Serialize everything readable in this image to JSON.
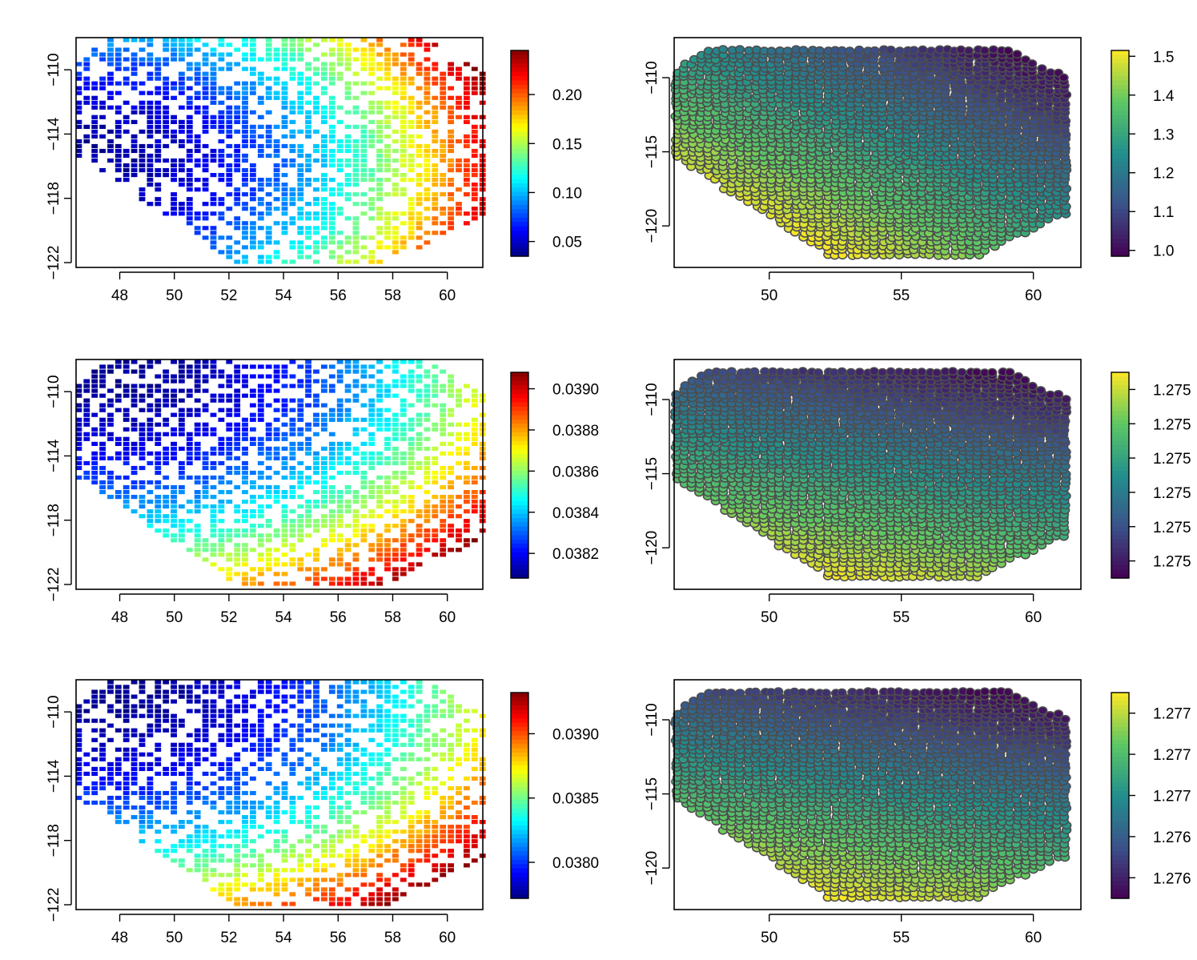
{
  "colors": {
    "jet": [
      "#00007f",
      "#0000ff",
      "#007fff",
      "#00ffff",
      "#7fff7f",
      "#ffff00",
      "#ff7f00",
      "#ff0000",
      "#7f0000"
    ],
    "viridis": [
      "#440154",
      "#3b528b",
      "#21908c",
      "#5dc863",
      "#fde725"
    ],
    "frame": "#000000",
    "point_outline": "#4d4d4d"
  },
  "chart_data": [
    {
      "id": "row1-left",
      "type": "heatmap",
      "grid": false,
      "xlim": [
        46.4,
        61.3
      ],
      "ylim": [
        -122.3,
        -108.0
      ],
      "x_ticks": [
        "48",
        "50",
        "52",
        "54",
        "56",
        "58",
        "60"
      ],
      "y_ticks": [
        "-110",
        "-114",
        "-118",
        "-122"
      ],
      "colorbar": {
        "colormap": "jet",
        "range": [
          0.035,
          0.245
        ],
        "ticks": [
          "0.05",
          "0.10",
          "0.15",
          "0.20"
        ]
      },
      "field": {
        "min": 0.035,
        "max": 0.245,
        "center": [
          53.5,
          -114.0
        ],
        "gradient": [
          0.55,
          0.15,
          0.3
        ]
      }
    },
    {
      "id": "row1-right",
      "type": "scatter",
      "grid": false,
      "xlim": [
        46.4,
        61.8
      ],
      "ylim": [
        -122.8,
        -107.3
      ],
      "x_ticks": [
        "50",
        "55",
        "60"
      ],
      "y_ticks": [
        "-110",
        "-115",
        "-120"
      ],
      "colorbar": {
        "colormap": "viridis",
        "range": [
          0.985,
          1.515
        ],
        "ticks": [
          "1.0",
          "1.1",
          "1.2",
          "1.3",
          "1.4",
          "1.5"
        ]
      },
      "field": {
        "min": 0.985,
        "max": 1.515,
        "center": [
          54.0,
          -115.0
        ],
        "gradient": [
          -0.45,
          -0.55,
          0.0
        ]
      }
    },
    {
      "id": "row2-left",
      "type": "heatmap",
      "grid": false,
      "xlim": [
        46.4,
        61.3
      ],
      "ylim": [
        -122.3,
        -108.0
      ],
      "x_ticks": [
        "48",
        "50",
        "52",
        "54",
        "56",
        "58",
        "60"
      ],
      "y_ticks": [
        "-110",
        "-114",
        "-118",
        "-122"
      ],
      "colorbar": {
        "colormap": "jet",
        "range": [
          0.03808,
          0.03908
        ],
        "ticks": [
          "0.0382",
          "0.0384",
          "0.0386",
          "0.0388",
          "0.0390"
        ]
      },
      "field": {
        "min": 0.03808,
        "max": 0.03908,
        "center": [
          53.5,
          -114.0
        ],
        "gradient": [
          0.45,
          -0.45,
          0.3
        ]
      }
    },
    {
      "id": "row2-right",
      "type": "scatter",
      "grid": false,
      "xlim": [
        46.4,
        61.8
      ],
      "ylim": [
        -122.8,
        -107.3
      ],
      "x_ticks": [
        "50",
        "55",
        "60"
      ],
      "y_ticks": [
        "-110",
        "-115",
        "-120"
      ],
      "colorbar": {
        "colormap": "viridis",
        "ticks": [
          "1.275",
          "1.275",
          "1.275",
          "1.275",
          "1.275",
          "1.275"
        ]
      },
      "field": {
        "min": 0,
        "max": 1,
        "center": [
          54.0,
          -115.0
        ],
        "gradient": [
          -0.25,
          -0.75,
          0.0
        ]
      }
    },
    {
      "id": "row3-left",
      "type": "heatmap",
      "grid": false,
      "xlim": [
        46.4,
        61.3
      ],
      "ylim": [
        -122.3,
        -108.0
      ],
      "x_ticks": [
        "48",
        "50",
        "52",
        "54",
        "56",
        "58",
        "60"
      ],
      "y_ticks": [
        "-110",
        "-114",
        "-118",
        "-122"
      ],
      "colorbar": {
        "colormap": "jet",
        "range": [
          0.03772,
          0.03932
        ],
        "ticks": [
          "0.0380",
          "0.0385",
          "0.0390"
        ]
      },
      "field": {
        "min": 0.03772,
        "max": 0.03932,
        "center": [
          53.5,
          -114.0
        ],
        "gradient": [
          0.45,
          -0.45,
          0.3
        ]
      }
    },
    {
      "id": "row3-right",
      "type": "scatter",
      "grid": false,
      "xlim": [
        46.4,
        61.8
      ],
      "ylim": [
        -122.8,
        -107.3
      ],
      "x_ticks": [
        "50",
        "55",
        "60"
      ],
      "y_ticks": [
        "-110",
        "-115",
        "-120"
      ],
      "colorbar": {
        "colormap": "viridis",
        "ticks": [
          "1.276",
          "1.276",
          "1.277",
          "1.277",
          "1.277"
        ]
      },
      "field": {
        "min": 0,
        "max": 1,
        "center": [
          54.0,
          -115.0
        ],
        "gradient": [
          -0.25,
          -0.75,
          0.0
        ]
      }
    }
  ]
}
